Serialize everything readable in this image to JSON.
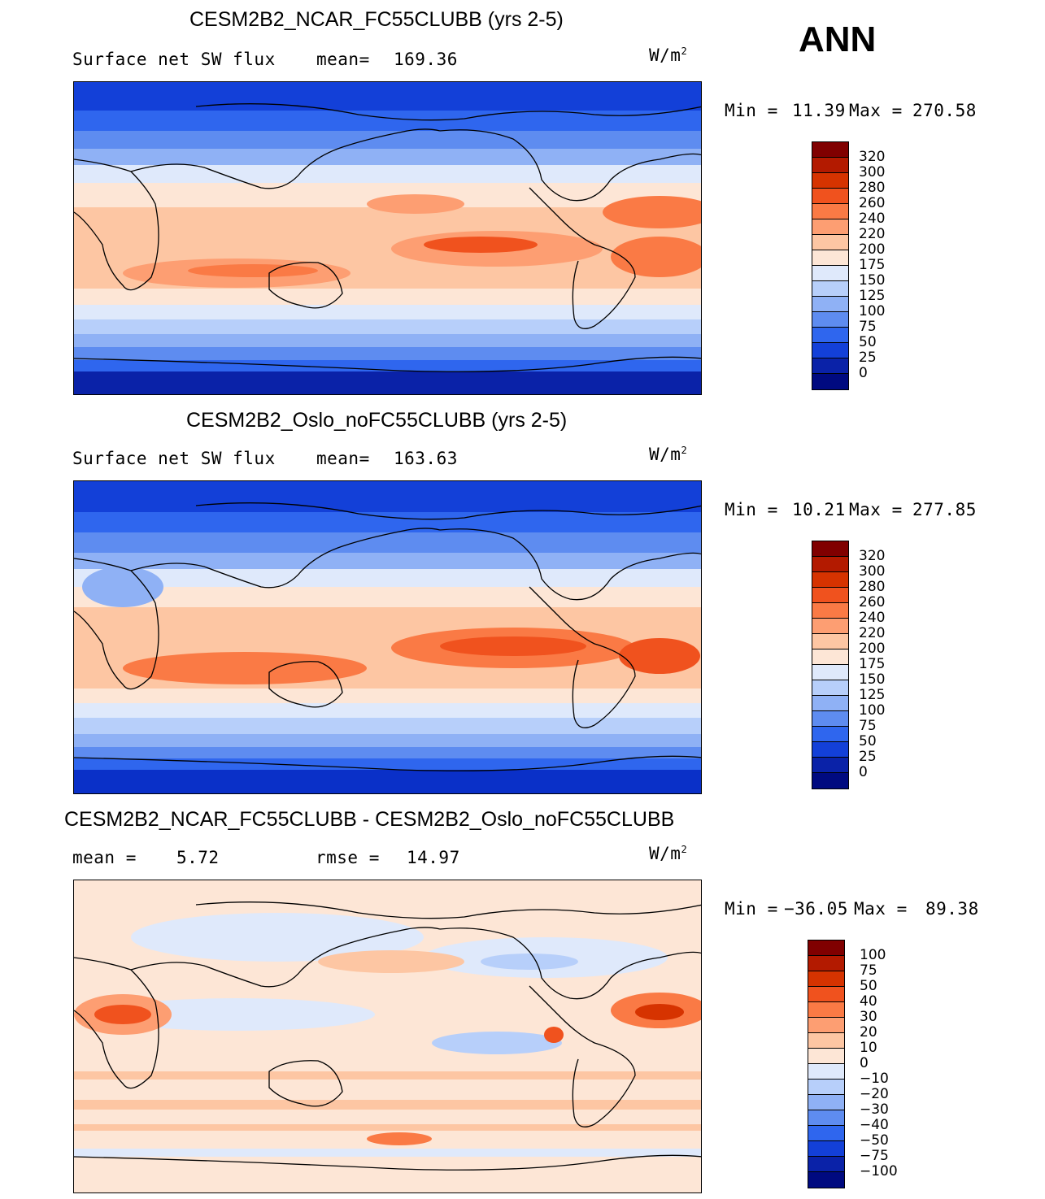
{
  "season": "ANN",
  "panels": [
    {
      "title": "CESM2B2_NCAR_FC55CLUBB (yrs 2-5)",
      "variable": "Surface net SW flux",
      "stat1_label": "mean=",
      "stat1_value": "169.36",
      "units": "W/m",
      "units_exp": "2",
      "min_label": "Min  =",
      "min_value": "11.39",
      "max_label": "Max  =",
      "max_value": "270.58",
      "colorbar_labels": [
        "320",
        "300",
        "280",
        "260",
        "240",
        "220",
        "200",
        "175",
        "150",
        "125",
        "100",
        "75",
        "50",
        "25",
        "0"
      ]
    },
    {
      "title": "CESM2B2_Oslo_noFC55CLUBB (yrs 2-5)",
      "variable": "Surface net SW flux",
      "stat1_label": "mean=",
      "stat1_value": "163.63",
      "units": "W/m",
      "units_exp": "2",
      "min_label": "Min  =",
      "min_value": "10.21",
      "max_label": "Max  =",
      "max_value": "277.85",
      "colorbar_labels": [
        "320",
        "300",
        "280",
        "260",
        "240",
        "220",
        "200",
        "175",
        "150",
        "125",
        "100",
        "75",
        "50",
        "25",
        "0"
      ]
    },
    {
      "title": "CESM2B2_NCAR_FC55CLUBB - CESM2B2_Oslo_noFC55CLUBB",
      "stat1_label": "mean =",
      "stat1_value": "5.72",
      "stat2_label": "rmse =",
      "stat2_value": "14.97",
      "units": "W/m",
      "units_exp": "2",
      "min_label": "Min  =",
      "min_value": "−36.05",
      "max_label": "Max  =",
      "max_value": "89.38",
      "colorbar_labels": [
        "100",
        "75",
        "50",
        "40",
        "30",
        "20",
        "10",
        "0",
        "−10",
        "−20",
        "−30",
        "−40",
        "−50",
        "−75",
        "−100"
      ]
    }
  ],
  "colors": {
    "abs_scale": [
      "#800000",
      "#b31a00",
      "#d63300",
      "#f0521e",
      "#fa7a45",
      "#fd9e72",
      "#fdc6a3",
      "#fde6d6",
      "#dfe9fb",
      "#b7cffa",
      "#8fb1f5",
      "#5e8cf0",
      "#2f66ee",
      "#1340d8",
      "#0a22a8",
      "#000a80"
    ],
    "diff_scale": [
      "#800000",
      "#b31a00",
      "#d63300",
      "#f0521e",
      "#fa7a45",
      "#fd9e72",
      "#fdc6a3",
      "#fde6d6",
      "#dfe9fb",
      "#b7cffa",
      "#8fb1f5",
      "#5e8cf0",
      "#2f66ee",
      "#1340d8",
      "#0a22a8",
      "#000a80"
    ],
    "ocean_polar": "#0a30c8",
    "diff_background": "#fde6d6"
  }
}
